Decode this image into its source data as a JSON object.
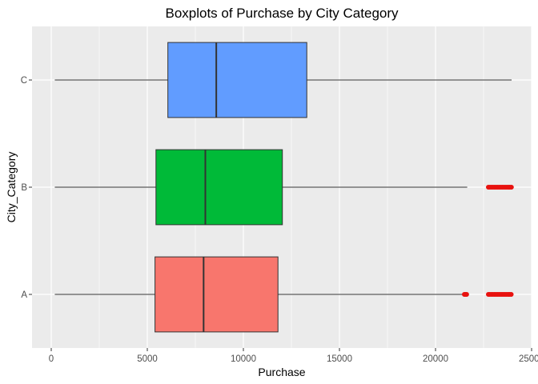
{
  "chart_data": {
    "type": "boxplot",
    "orientation": "horizontal",
    "title": "Boxplots of Purchase by City Category",
    "xlabel": "Purchase",
    "ylabel": "City_Category",
    "xlim": [
      -1000,
      25000
    ],
    "xticks": [
      0,
      5000,
      10000,
      15000,
      20000,
      25000
    ],
    "xtick_labels": [
      "0",
      "5000",
      "10000",
      "15000",
      "20000",
      "25000"
    ],
    "categories": [
      "A",
      "B",
      "C"
    ],
    "grid": true,
    "legend": "none",
    "series": [
      {
        "category": "A",
        "color": "#F8766D",
        "whisker_low": 185,
        "q1": 5400,
        "median": 7930,
        "q3": 11800,
        "whisker_high": 21400,
        "outliers": [
          21500,
          21560,
          21620,
          22750,
          22820,
          22900,
          22980,
          23060,
          23140,
          23220,
          23300,
          23380,
          23460,
          23540,
          23620,
          23700,
          23780,
          23860,
          23940
        ]
      },
      {
        "category": "B",
        "color": "#00BA38",
        "whisker_low": 185,
        "q1": 5450,
        "median": 8020,
        "q3": 12030,
        "whisker_high": 21650,
        "outliers": [
          22750,
          22830,
          22910,
          22990,
          23070,
          23150,
          23230,
          23310,
          23390,
          23470,
          23550,
          23630,
          23710,
          23790,
          23870,
          23950
        ]
      },
      {
        "category": "C",
        "color": "#619CFF",
        "whisker_low": 185,
        "q1": 6070,
        "median": 8590,
        "q3": 13300,
        "whisker_high": 23960,
        "outliers": []
      }
    ]
  }
}
